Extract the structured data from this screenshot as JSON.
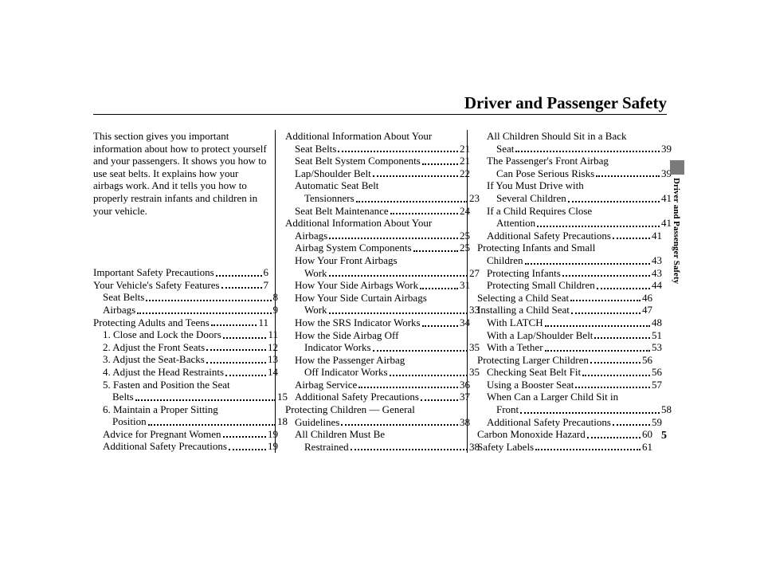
{
  "title": "Driver and Passenger Safety",
  "intro": "This section gives you important information about how to protect yourself and your passengers. It shows you how to use seat belts. It explains how your airbags work. And it tells you how to properly restrain infants and children in your vehicle.",
  "side_tab": "Driver and Passenger Safety",
  "page_number": "5",
  "columns": [
    [
      {
        "indent": 0,
        "text": "Important Safety Precautions",
        "page": "6"
      },
      {
        "indent": 0,
        "text": "Your Vehicle's Safety Features",
        "page": "7"
      },
      {
        "indent": 1,
        "text": "Seat Belts",
        "page": "8"
      },
      {
        "indent": 1,
        "text": "Airbags",
        "page": "9"
      },
      {
        "indent": 0,
        "text": "Protecting Adults and Teens",
        "page": "11"
      },
      {
        "indent": 1,
        "text": "1. Close and Lock the Doors",
        "page": "11"
      },
      {
        "indent": 1,
        "text": "2. Adjust the Front Seats",
        "page": "12"
      },
      {
        "indent": 1,
        "text": "3. Adjust the Seat-Backs",
        "page": "13"
      },
      {
        "indent": 1,
        "text": "4. Adjust the Head Restraints",
        "page": "14"
      },
      {
        "indent": 1,
        "text": "5. Fasten and Position the Seat",
        "page": null
      },
      {
        "indent": 2,
        "text": "Belts",
        "page": "15"
      },
      {
        "indent": 1,
        "text": "6. Maintain a Proper Sitting",
        "page": null
      },
      {
        "indent": 2,
        "text": "Position",
        "page": "18"
      },
      {
        "indent": 1,
        "text": "Advice for Pregnant Women",
        "page": "19"
      },
      {
        "indent": 1,
        "text": "Additional Safety Precautions",
        "page": "19"
      }
    ],
    [
      {
        "indent": 0,
        "text": "Additional Information About Your",
        "page": null
      },
      {
        "indent": 1,
        "text": "Seat Belts",
        "page": "21"
      },
      {
        "indent": 1,
        "text": "Seat Belt System Components",
        "page": "21"
      },
      {
        "indent": 1,
        "text": "Lap/Shoulder Belt",
        "page": "22"
      },
      {
        "indent": 1,
        "text": "Automatic Seat Belt",
        "page": null
      },
      {
        "indent": 2,
        "text": "Tensionners",
        "page": "23"
      },
      {
        "indent": 1,
        "text": "Seat Belt Maintenance",
        "page": "24"
      },
      {
        "indent": 0,
        "text": "Additional Information About Your",
        "page": null
      },
      {
        "indent": 1,
        "text": "Airbags",
        "page": "25"
      },
      {
        "indent": 1,
        "text": "Airbag System Components",
        "page": "25"
      },
      {
        "indent": 1,
        "text": "How Your Front Airbags",
        "page": null
      },
      {
        "indent": 2,
        "text": "Work",
        "page": "27"
      },
      {
        "indent": 1,
        "text": "How Your Side Airbags Work",
        "page": "31"
      },
      {
        "indent": 1,
        "text": "How Your Side Curtain Airbags",
        "page": null
      },
      {
        "indent": 2,
        "text": "Work",
        "page": "33"
      },
      {
        "indent": 1,
        "text": "How the SRS Indicator Works",
        "page": "34"
      },
      {
        "indent": 1,
        "text": "How the Side Airbag Off",
        "page": null
      },
      {
        "indent": 2,
        "text": "Indicator Works",
        "page": "35"
      },
      {
        "indent": 1,
        "text": "How the Passenger Airbag",
        "page": null
      },
      {
        "indent": 2,
        "text": "Off Indicator Works",
        "page": "35"
      },
      {
        "indent": 1,
        "text": "Airbag Service",
        "page": "36"
      },
      {
        "indent": 1,
        "text": "Additional Safety Precautions",
        "page": "37"
      },
      {
        "indent": 0,
        "text": "Protecting Children — General",
        "page": null
      },
      {
        "indent": 1,
        "text": "Guidelines",
        "page": "38"
      },
      {
        "indent": 1,
        "text": "All Children Must Be",
        "page": null
      },
      {
        "indent": 2,
        "text": "Restrained",
        "page": "38"
      }
    ],
    [
      {
        "indent": 1,
        "text": "All Children Should Sit in a Back",
        "page": null
      },
      {
        "indent": 2,
        "text": "Seat",
        "page": "39"
      },
      {
        "indent": 1,
        "text": "The Passenger's Front Airbag",
        "page": null
      },
      {
        "indent": 2,
        "text": "Can Pose Serious Risks",
        "page": "39"
      },
      {
        "indent": 1,
        "text": "If You Must Drive with",
        "page": null
      },
      {
        "indent": 2,
        "text": "Several Children",
        "page": "41"
      },
      {
        "indent": 1,
        "text": "If a Child Requires Close",
        "page": null
      },
      {
        "indent": 2,
        "text": "Attention",
        "page": "41"
      },
      {
        "indent": 1,
        "text": "Additional Safety Precautions",
        "page": "41"
      },
      {
        "indent": 0,
        "text": "Protecting Infants and Small",
        "page": null
      },
      {
        "indent": 1,
        "text": "Children",
        "page": "43"
      },
      {
        "indent": 1,
        "text": "Protecting Infants",
        "page": "43"
      },
      {
        "indent": 1,
        "text": "Protecting Small Children",
        "page": "44"
      },
      {
        "indent": 0,
        "text": "Selecting a Child Seat",
        "page": "46"
      },
      {
        "indent": 0,
        "text": "Installing a Child Seat",
        "page": "47"
      },
      {
        "indent": 1,
        "text": "With LATCH",
        "page": "48"
      },
      {
        "indent": 1,
        "text": "With a Lap/Shoulder Belt",
        "page": "51"
      },
      {
        "indent": 1,
        "text": "With a Tether",
        "page": "53"
      },
      {
        "indent": 0,
        "text": "Protecting Larger Children",
        "page": "56"
      },
      {
        "indent": 1,
        "text": "Checking Seat Belt Fit",
        "page": "56"
      },
      {
        "indent": 1,
        "text": "Using a Booster Seat",
        "page": "57"
      },
      {
        "indent": 1,
        "text": "When Can a Larger Child Sit in",
        "page": null
      },
      {
        "indent": 2,
        "text": "Front",
        "page": "58"
      },
      {
        "indent": 1,
        "text": "Additional Safety Precautions",
        "page": "59"
      },
      {
        "indent": 0,
        "text": "Carbon Monoxide Hazard",
        "page": "60"
      },
      {
        "indent": 0,
        "text": "Safety Labels",
        "page": "61"
      }
    ]
  ]
}
